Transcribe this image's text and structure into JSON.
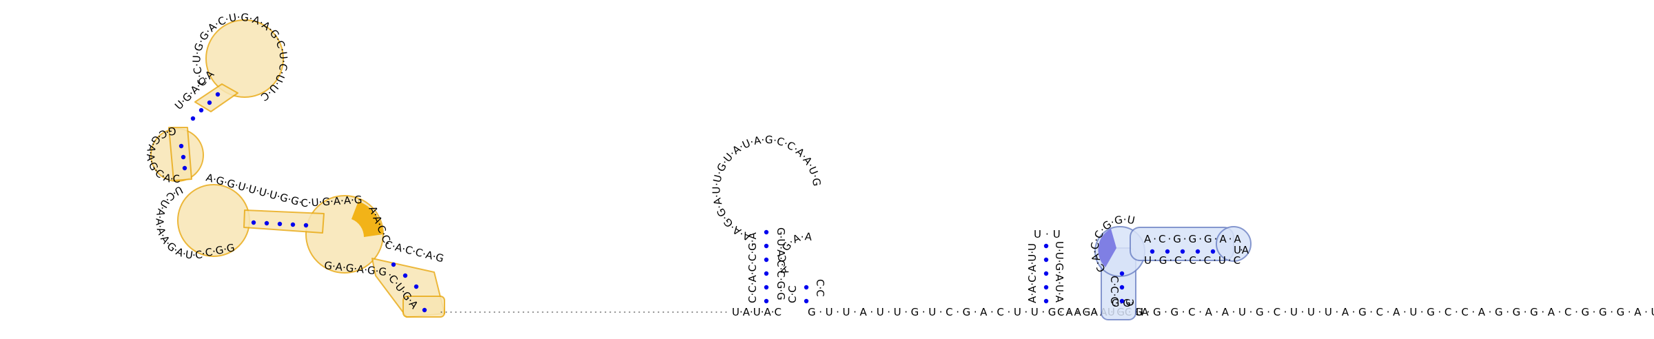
{
  "diagram": {
    "regions": [
      {
        "name": "multi-branch-domain",
        "highlight": "#e9ab18",
        "strands": [
          {
            "id": "top-hairpin-loop",
            "text": "CCUGGACUGAAGCUCUUC"
          },
          {
            "id": "top-stem-5p",
            "text": "UGACAAGUUCU"
          },
          {
            "id": "left-loop",
            "text": "GCGAAGCACGU"
          },
          {
            "id": "middle-stem",
            "text": "UCUAAAAGAUCCGG"
          },
          {
            "id": "upper-right-stem",
            "text": "AGGUUUUGGCUGAAGA"
          },
          {
            "id": "right-loop",
            "text": "AACCCACCAGA"
          },
          {
            "id": "bottom-junction",
            "text": "GAGAGGCUGAAU"
          }
        ]
      },
      {
        "name": "hairpin-1",
        "stem5p": "CCACCGA",
        "stem3p": "GUACCGG",
        "loop": "AAGGAUUGUAUAGCCAAUG"
      },
      {
        "name": "hairpin-2",
        "stem5p": "CC",
        "stem3p": "CC",
        "loop": "ACGAA"
      },
      {
        "name": "hairpin-3",
        "stem5p": "AACAUU",
        "stem3p": "UUGAUA",
        "loop": "UU"
      },
      {
        "name": "pseudoknot-domain",
        "highlight": "#6f84c6",
        "stem-outer": "CCCGGC",
        "stem-inner": "ACGGGAA",
        "stem-inner-pair": "UGCCCUC",
        "loop": "CACCGGU",
        "tail": "UA"
      }
    ],
    "backbone": {
      "linker": "UAUAC",
      "mid": "GUUAUUGUCGACUUGAGAGG",
      "mid2": "CAAUCA",
      "tail3p": "UGGCAAUGCUUUAGCAUGCCAGGGACGGGAUUUUGU"
    }
  }
}
